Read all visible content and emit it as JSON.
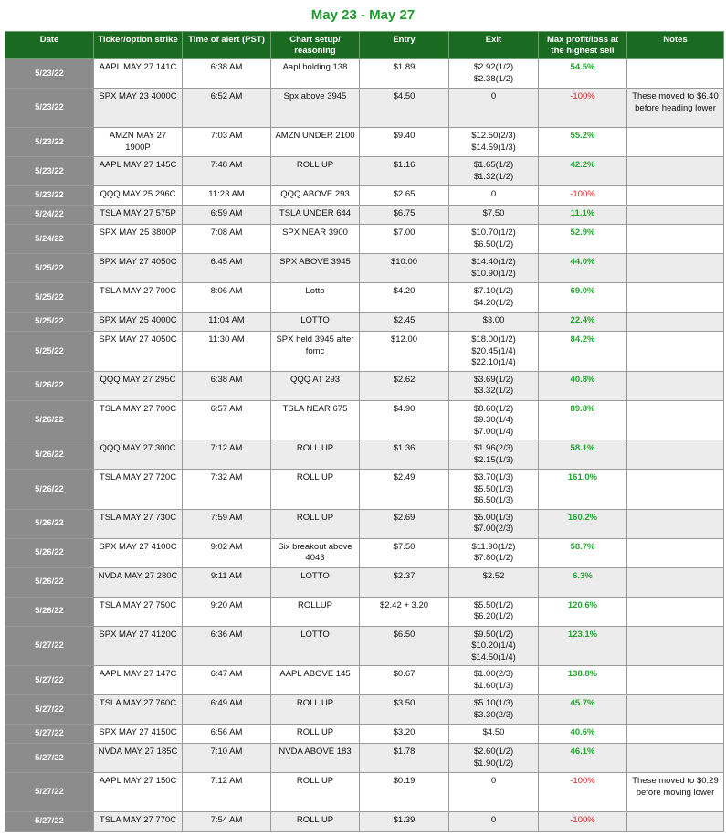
{
  "title": "May 23 - May 27",
  "columns": [
    "Date",
    "Ticker/option strike",
    "Time of alert (PST)",
    "Chart setup/ reasoning",
    "Entry",
    "Exit",
    "Max profit/loss at the highest sell",
    "Notes"
  ],
  "rows": [
    {
      "date": "5/23/22",
      "ticker": "AAPL MAY 27 141C",
      "time": "6:38 AM",
      "setup": "Aapl holding 138",
      "entry": "$1.89",
      "exit": [
        "$2.92(1/2)",
        "$2.38(1/2)"
      ],
      "pl": "54.5%",
      "notes": ""
    },
    {
      "date": "5/23/22",
      "ticker": "SPX MAY 23 4000C",
      "time": "6:52 AM",
      "setup": "Spx above 3945",
      "entry": "$4.50",
      "exit": [
        "0"
      ],
      "pl": "-100%",
      "notes": "These moved to $6.40 before heading lower"
    },
    {
      "date": "5/23/22",
      "ticker": "AMZN MAY 27 1900P",
      "time": "7:03 AM",
      "setup": "AMZN UNDER 2100",
      "entry": "$9.40",
      "exit": [
        "$12.50(2/3)",
        "$14.59(1/3)"
      ],
      "pl": "55.2%",
      "notes": ""
    },
    {
      "date": "5/23/22",
      "ticker": "AAPL MAY 27 145C",
      "time": "7:48 AM",
      "setup": "ROLL UP",
      "entry": "$1.16",
      "exit": [
        "$1.65(1/2)",
        "$1.32(1/2)"
      ],
      "pl": "42.2%",
      "notes": ""
    },
    {
      "date": "5/23/22",
      "ticker": "QQQ MAY 25 296C",
      "time": "11:23 AM",
      "setup": "QQQ ABOVE 293",
      "entry": "$2.65",
      "exit": [
        "0"
      ],
      "pl": "-100%",
      "notes": ""
    },
    {
      "date": "5/24/22",
      "ticker": "TSLA MAY 27 575P",
      "time": "6:59 AM",
      "setup": "TSLA UNDER 644",
      "entry": "$6.75",
      "exit": [
        "$7.50"
      ],
      "pl": "11.1%",
      "notes": ""
    },
    {
      "date": "5/24/22",
      "ticker": "SPX MAY 25 3800P",
      "time": "7:08 AM",
      "setup": "SPX NEAR 3900",
      "entry": "$7.00",
      "exit": [
        "$10.70(1/2)",
        "$6.50(1/2)"
      ],
      "pl": "52.9%",
      "notes": ""
    },
    {
      "date": "5/25/22",
      "ticker": "SPX MAY 27 4050C",
      "time": "6:45 AM",
      "setup": "SPX ABOVE 3945",
      "entry": "$10.00",
      "exit": [
        "$14.40(1/2)",
        "$10.90(1/2)"
      ],
      "pl": "44.0%",
      "notes": ""
    },
    {
      "date": "5/25/22",
      "ticker": "TSLA MAY 27 700C",
      "time": "8:06 AM",
      "setup": "Lotto",
      "entry": "$4.20",
      "exit": [
        "$7.10(1/2)",
        "$4.20(1/2)"
      ],
      "pl": "69.0%",
      "notes": ""
    },
    {
      "date": "5/25/22",
      "ticker": "SPX MAY 25 4000C",
      "time": "11:04 AM",
      "setup": "LOTTO",
      "entry": "$2.45",
      "exit": [
        "$3.00"
      ],
      "pl": "22.4%",
      "notes": ""
    },
    {
      "date": "5/25/22",
      "ticker": "SPX MAY 27 4050C",
      "time": "11:30 AM",
      "setup": "SPX held 3945 after fomc",
      "entry": "$12.00",
      "exit": [
        "$18.00(1/2)",
        "$20.45(1/4)",
        "$22.10(1/4)"
      ],
      "pl": "84.2%",
      "notes": ""
    },
    {
      "date": "5/26/22",
      "ticker": "QQQ MAY 27 295C",
      "time": "6:38 AM",
      "setup": "QQQ AT 293",
      "entry": "$2.62",
      "exit": [
        "$3.69(1/2)",
        "$3.32(1/2)"
      ],
      "pl": "40.8%",
      "notes": ""
    },
    {
      "date": "5/26/22",
      "ticker": "TSLA MAY 27 700C",
      "time": "6:57 AM",
      "setup": "TSLA NEAR 675",
      "entry": "$4.90",
      "exit": [
        "$8.60(1/2)",
        "$9.30(1/4)",
        "$7.00(1/4)"
      ],
      "pl": "89.8%",
      "notes": ""
    },
    {
      "date": "5/26/22",
      "ticker": "QQQ MAY 27 300C",
      "time": "7:12 AM",
      "setup": "ROLL UP",
      "entry": "$1.36",
      "exit": [
        "$1.96(2/3)",
        "$2.15(1/3)"
      ],
      "pl": "58.1%",
      "notes": ""
    },
    {
      "date": "5/26/22",
      "ticker": "TSLA MAY 27 720C",
      "time": "7:32 AM",
      "setup": "ROLL UP",
      "entry": "$2.49",
      "exit": [
        "$3.70(1/3)",
        "$5.50(1/3)",
        "$6.50(1/3)"
      ],
      "pl": "161.0%",
      "notes": ""
    },
    {
      "date": "5/26/22",
      "ticker": "TSLA MAY 27 730C",
      "time": "7:59 AM",
      "setup": "ROLL UP",
      "entry": "$2.69",
      "exit": [
        "$5.00(1/3)",
        "$7.00(2/3)"
      ],
      "pl": "160.2%",
      "notes": ""
    },
    {
      "date": "5/26/22",
      "ticker": "SPX MAY 27 4100C",
      "time": "9:02 AM",
      "setup": "Six breakout above 4043",
      "entry": "$7.50",
      "exit": [
        "$11.90(1/2)",
        "$7.80(1/2)"
      ],
      "pl": "58.7%",
      "notes": ""
    },
    {
      "date": "5/26/22",
      "ticker": "NVDA MAY 27 280C",
      "time": "9:11 AM",
      "setup": "LOTTO",
      "entry": "$2.37",
      "exit": [
        "$2.52"
      ],
      "pl": "6.3%",
      "notes": ""
    },
    {
      "date": "5/26/22",
      "ticker": "TSLA MAY 27 750C",
      "time": "9:20 AM",
      "setup": "ROLLUP",
      "entry": "$2.42 + 3.20",
      "exit": [
        "$5.50(1/2)",
        "$6.20(1/2)"
      ],
      "pl": "120.6%",
      "notes": ""
    },
    {
      "date": "5/27/22",
      "ticker": "SPX MAY 27 4120C",
      "time": "6:36 AM",
      "setup": "LOTTO",
      "entry": "$6.50",
      "exit": [
        "$9.50(1/2)",
        "$10.20(1/4)",
        "$14.50(1/4)"
      ],
      "pl": "123.1%",
      "notes": ""
    },
    {
      "date": "5/27/22",
      "ticker": "AAPL MAY 27 147C",
      "time": "6:47 AM",
      "setup": "AAPL ABOVE 145",
      "entry": "$0.67",
      "exit": [
        "$1.00(2/3)",
        "$1.60(1/3)"
      ],
      "pl": "138.8%",
      "notes": ""
    },
    {
      "date": "5/27/22",
      "ticker": "TSLA MAY 27 760C",
      "time": "6:49 AM",
      "setup": "ROLL UP",
      "entry": "$3.50",
      "exit": [
        "$5.10(1/3)",
        "$3.30(2/3)"
      ],
      "pl": "45.7%",
      "notes": ""
    },
    {
      "date": "5/27/22",
      "ticker": "SPX MAY 27 4150C",
      "time": "6:56 AM",
      "setup": "ROLL UP",
      "entry": "$3.20",
      "exit": [
        "$4.50"
      ],
      "pl": "40.6%",
      "notes": ""
    },
    {
      "date": "5/27/22",
      "ticker": "NVDA MAY 27 185C",
      "time": "7:10 AM",
      "setup": "NVDA ABOVE 183",
      "entry": "$1.78",
      "exit": [
        "$2.60(1/2)",
        "$1.90(1/2)"
      ],
      "pl": "46.1%",
      "notes": ""
    },
    {
      "date": "5/27/22",
      "ticker": "AAPL MAY 27 150C",
      "time": "7:12 AM",
      "setup": "ROLL UP",
      "entry": "$0.19",
      "exit": [
        "0"
      ],
      "pl": "-100%",
      "notes": "These moved to $0.29 before moving lower"
    },
    {
      "date": "5/27/22",
      "ticker": "TSLA MAY 27 770C",
      "time": "7:54 AM",
      "setup": "ROLL UP",
      "entry": "$1.39",
      "exit": [
        "0"
      ],
      "pl": "-100%",
      "notes": ""
    }
  ]
}
